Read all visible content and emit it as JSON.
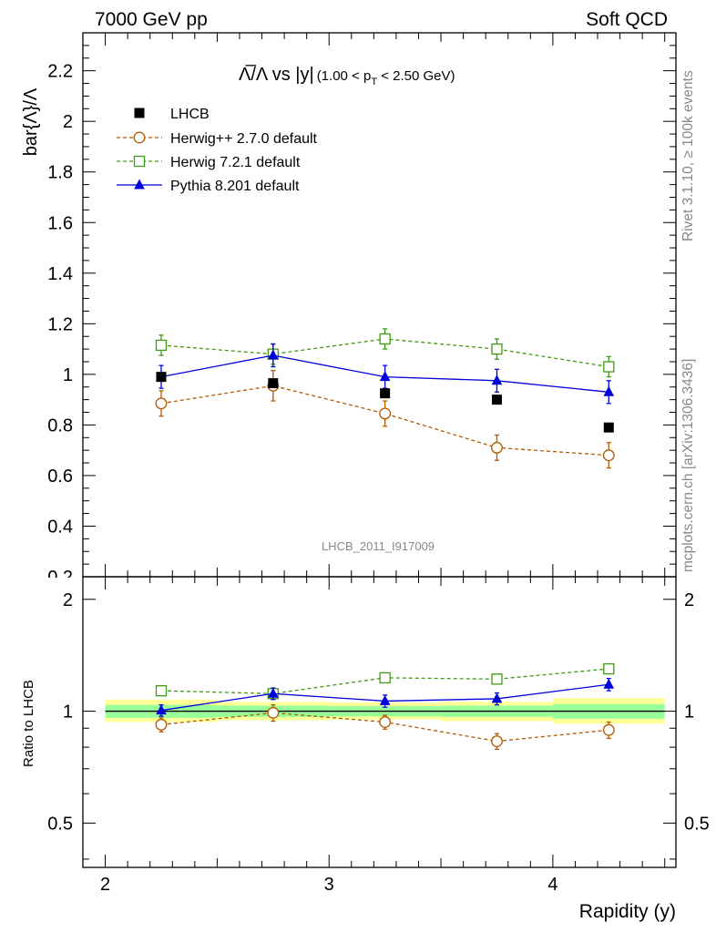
{
  "header": {
    "left": "7000 GeV pp",
    "right": "Soft QCD"
  },
  "side_labels": {
    "rivet": "Rivet 3.1.10, ≥ 100k events",
    "mcplots": "mcplots.cern.ch [arXiv:1306.3436]"
  },
  "watermark": "LHCB_2011_I917009",
  "chart_data": [
    {
      "type": "scatter",
      "title_main": "Λ̅/Λ vs |y|",
      "title_cut": "(1.00 < p",
      "title_cut_sub": "T",
      "title_cut_end": " < 2.50 GeV)",
      "ylabel": "bar{Λ}/Λ",
      "xlim": [
        1.9,
        4.55
      ],
      "ylim": [
        0.2,
        2.35
      ],
      "yticks_labeled": [
        0.2,
        0.4,
        0.6,
        0.8,
        1,
        1.2,
        1.4,
        1.6,
        1.8,
        2,
        2.2
      ],
      "ytick_labels": [
        "0.2",
        "0.4",
        "0.6",
        "0.8",
        "1",
        "1.2",
        "1.4",
        "1.6",
        "1.8",
        "2",
        "2.2"
      ],
      "legend_position": "top-left",
      "x": [
        2.25,
        2.75,
        3.25,
        3.75,
        4.25
      ],
      "series": [
        {
          "name": "LHCB",
          "color": "#000000",
          "marker": "filled-square",
          "line": "none",
          "values": [
            0.99,
            0.965,
            0.925,
            0.9,
            0.79
          ],
          "err": [
            0,
            0,
            0,
            0,
            0
          ]
        },
        {
          "name": "Herwig++ 2.7.0 default",
          "color": "#b35900",
          "marker": "open-circle",
          "line": "dashed",
          "values": [
            0.885,
            0.955,
            0.845,
            0.71,
            0.68
          ],
          "err": [
            0.05,
            0.06,
            0.05,
            0.05,
            0.05
          ]
        },
        {
          "name": "Herwig 7.2.1 default",
          "color": "#3f9a15",
          "marker": "open-square",
          "line": "dashed",
          "values": [
            1.115,
            1.08,
            1.14,
            1.1,
            1.03
          ],
          "err": [
            0.04,
            0.04,
            0.04,
            0.04,
            0.04
          ]
        },
        {
          "name": "Pythia 8.201 default",
          "color": "#0000dd",
          "marker": "filled-triangle",
          "line": "solid",
          "values": [
            0.99,
            1.075,
            0.99,
            0.975,
            0.93
          ],
          "err": [
            0.045,
            0.045,
            0.045,
            0.045,
            0.045
          ]
        }
      ]
    },
    {
      "type": "scatter",
      "ylabel": "Ratio to LHCB",
      "xlabel": "Rapidity (y)",
      "xlim": [
        1.9,
        4.55
      ],
      "ylim": [
        0.38,
        2.3
      ],
      "ylog": true,
      "xticks_labeled": [
        2,
        3,
        4
      ],
      "xtick_labels": [
        "2",
        "3",
        "4"
      ],
      "yticks_labeled": [
        0.5,
        1,
        2
      ],
      "ytick_labels": [
        "0.5",
        "1",
        "2"
      ],
      "x": [
        2.25,
        2.75,
        3.25,
        3.75,
        4.25
      ],
      "bands": {
        "edges": [
          2.0,
          2.5,
          3.0,
          3.5,
          4.0,
          4.5
        ],
        "yellow": [
          [
            0.935,
            1.075
          ],
          [
            0.945,
            1.06
          ],
          [
            0.95,
            1.055
          ],
          [
            0.94,
            1.06
          ],
          [
            0.925,
            1.085
          ]
        ],
        "green": [
          [
            0.96,
            1.04
          ],
          [
            0.965,
            1.035
          ],
          [
            0.968,
            1.032
          ],
          [
            0.965,
            1.035
          ],
          [
            0.955,
            1.045
          ]
        ]
      },
      "series": [
        {
          "name": "Herwig++ 2.7.0 default",
          "values": [
            0.92,
            0.99,
            0.935,
            0.83,
            0.89
          ],
          "err": [
            0.04,
            0.05,
            0.04,
            0.04,
            0.045
          ]
        },
        {
          "name": "Herwig 7.2.1 default",
          "values": [
            1.135,
            1.115,
            1.23,
            1.22,
            1.3
          ],
          "err": [
            0.025,
            0.03,
            0.03,
            0.035,
            0.035
          ]
        },
        {
          "name": "Pythia 8.201 default",
          "values": [
            1.005,
            1.115,
            1.065,
            1.08,
            1.18
          ],
          "err": [
            0.035,
            0.04,
            0.04,
            0.04,
            0.045
          ]
        }
      ]
    }
  ]
}
